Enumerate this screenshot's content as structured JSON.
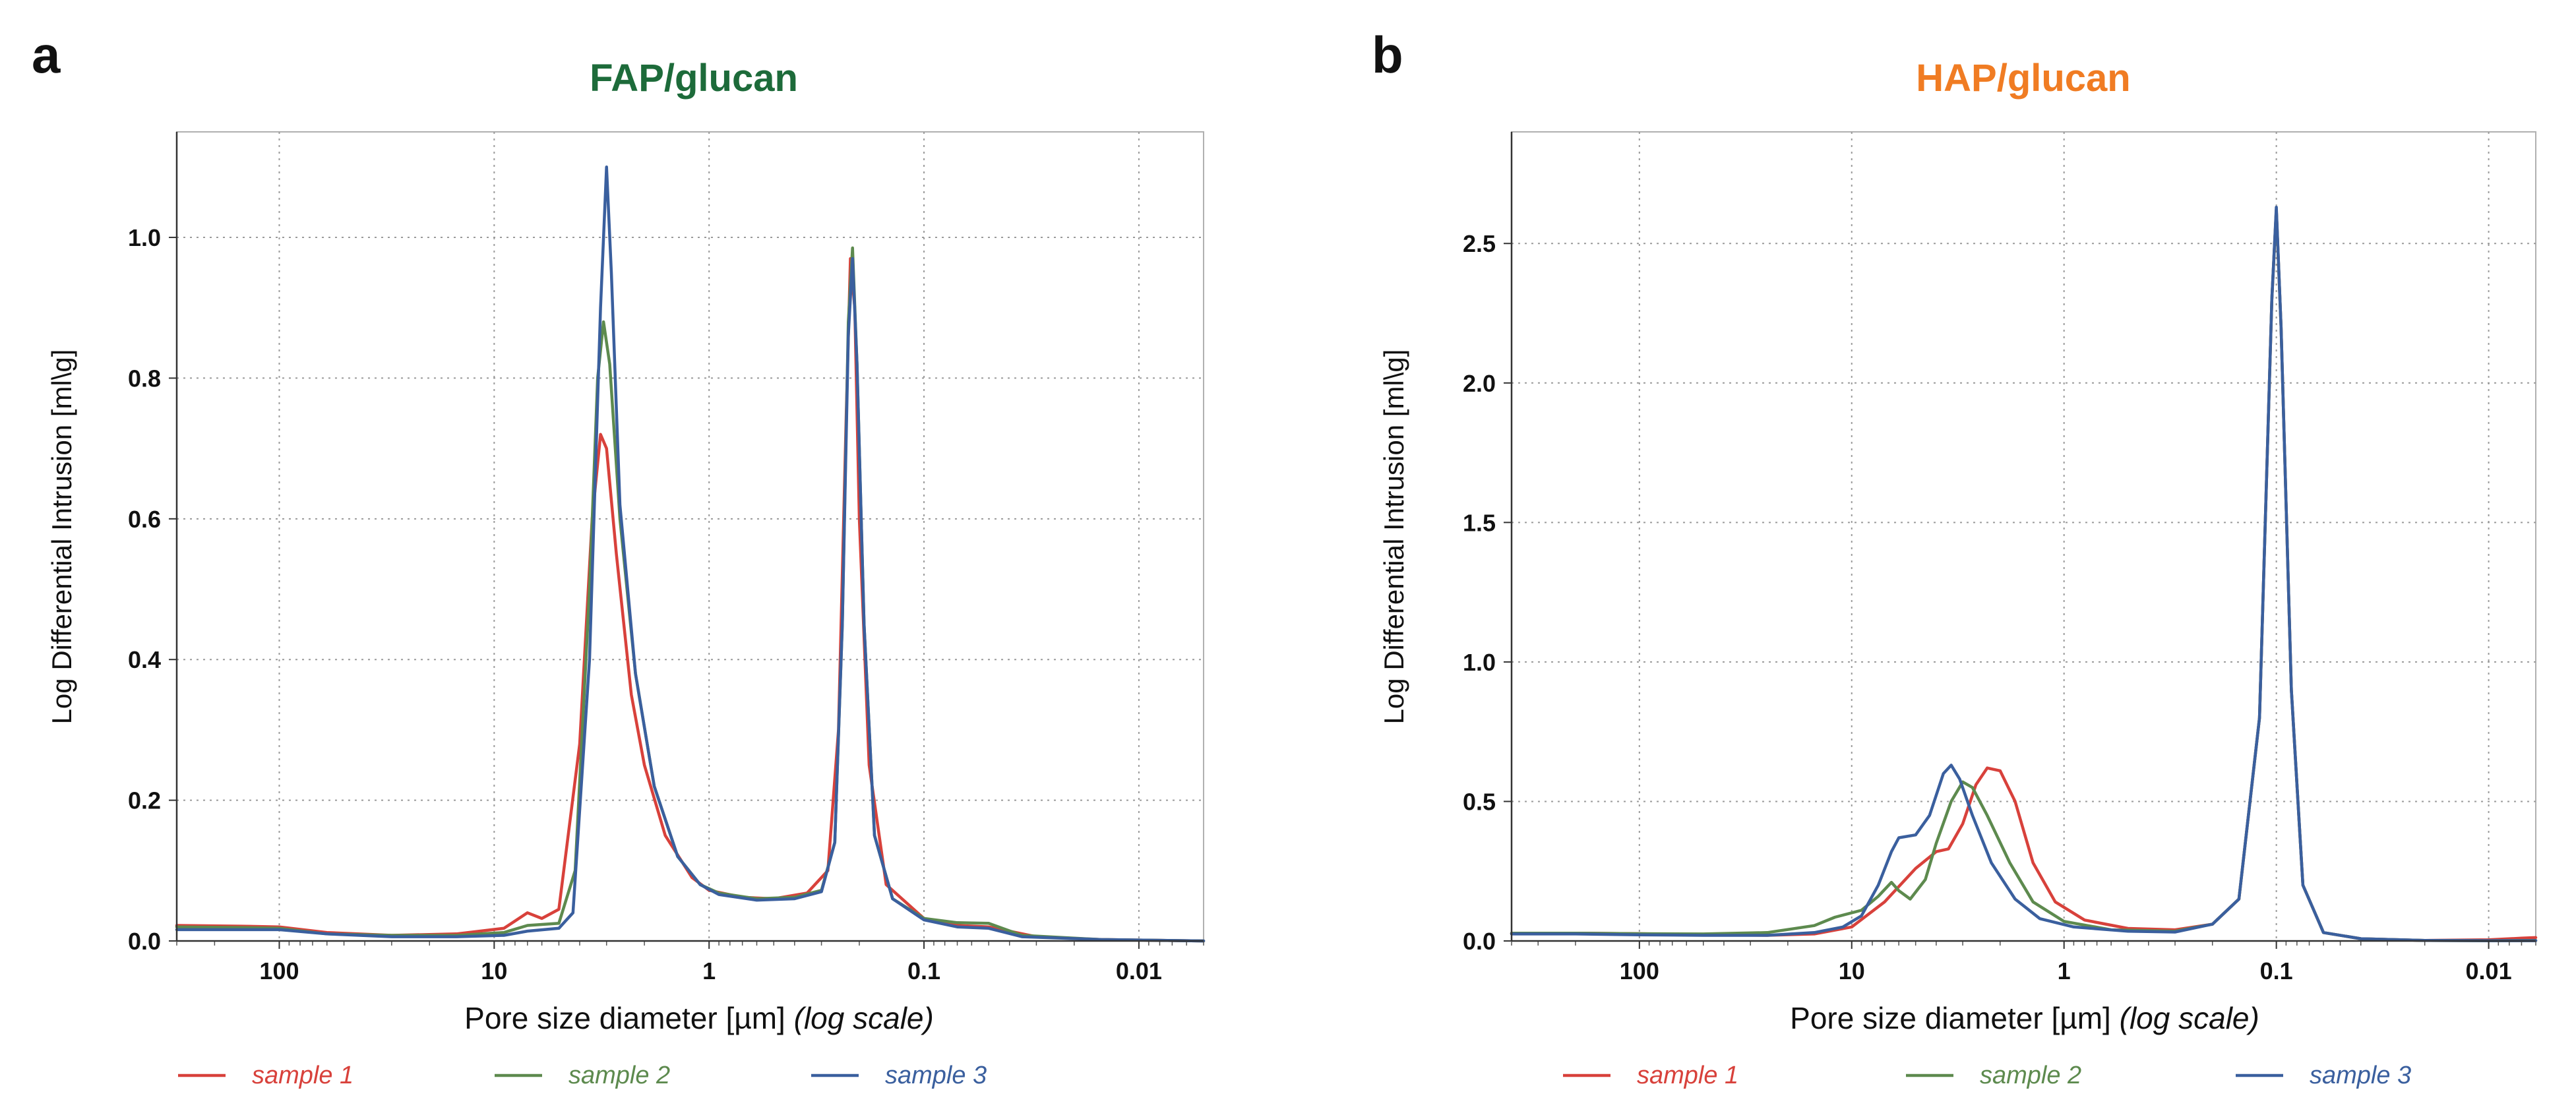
{
  "chart_data": [
    {
      "panel": "a",
      "type": "line",
      "title": "FAP/glucan",
      "title_color": "#1d6b3a",
      "xlabel": "Pore size diameter [µm]",
      "xlabel_suffix": "(log scale)",
      "x_scale": "log",
      "x_reversed": true,
      "xlim": [
        300,
        0.005
      ],
      "ylabel": "Log Differential Intrusion [ml\\g]",
      "ylim": [
        0,
        1.15
      ],
      "x_ticks": [
        {
          "value": 100,
          "label": "100"
        },
        {
          "value": 10,
          "label": "10"
        },
        {
          "value": 1,
          "label": "1"
        },
        {
          "value": 0.1,
          "label": "0.1"
        },
        {
          "value": 0.01,
          "label": "0.01"
        }
      ],
      "y_ticks": [
        {
          "value": 0,
          "label": "0.0"
        },
        {
          "value": 0.2,
          "label": "0.2"
        },
        {
          "value": 0.4,
          "label": "0.4"
        },
        {
          "value": 0.6,
          "label": "0.6"
        },
        {
          "value": 0.8,
          "label": "0.8"
        },
        {
          "value": 1.0,
          "label": "1.0"
        }
      ],
      "grid": true,
      "legend_position": "bottom",
      "series": [
        {
          "name": "sample 1",
          "color": "#d8413b",
          "points": [
            [
              300,
              0.022
            ],
            [
              150,
              0.021
            ],
            [
              100,
              0.02
            ],
            [
              60,
              0.012
            ],
            [
              30,
              0.008
            ],
            [
              15,
              0.01
            ],
            [
              9,
              0.018
            ],
            [
              7,
              0.04
            ],
            [
              6,
              0.032
            ],
            [
              5,
              0.045
            ],
            [
              4,
              0.28
            ],
            [
              3.5,
              0.6
            ],
            [
              3.2,
              0.72
            ],
            [
              3,
              0.7
            ],
            [
              2.7,
              0.55
            ],
            [
              2.3,
              0.35
            ],
            [
              2,
              0.25
            ],
            [
              1.6,
              0.15
            ],
            [
              1.2,
              0.09
            ],
            [
              1,
              0.072
            ],
            [
              0.7,
              0.062
            ],
            [
              0.5,
              0.06
            ],
            [
              0.35,
              0.068
            ],
            [
              0.28,
              0.1
            ],
            [
              0.25,
              0.3
            ],
            [
              0.23,
              0.75
            ],
            [
              0.22,
              0.97
            ],
            [
              0.21,
              0.9
            ],
            [
              0.2,
              0.6
            ],
            [
              0.18,
              0.25
            ],
            [
              0.15,
              0.08
            ],
            [
              0.1,
              0.032
            ],
            [
              0.07,
              0.022
            ],
            [
              0.05,
              0.02
            ],
            [
              0.03,
              0.006
            ],
            [
              0.015,
              0.002
            ],
            [
              0.005,
              0.0
            ]
          ]
        },
        {
          "name": "sample 2",
          "color": "#5d8a4e",
          "points": [
            [
              300,
              0.02
            ],
            [
              150,
              0.019
            ],
            [
              100,
              0.018
            ],
            [
              60,
              0.01
            ],
            [
              30,
              0.008
            ],
            [
              15,
              0.008
            ],
            [
              9,
              0.012
            ],
            [
              7,
              0.022
            ],
            [
              5,
              0.025
            ],
            [
              4.2,
              0.1
            ],
            [
              3.6,
              0.5
            ],
            [
              3.3,
              0.8
            ],
            [
              3.1,
              0.88
            ],
            [
              2.9,
              0.82
            ],
            [
              2.6,
              0.6
            ],
            [
              2.2,
              0.38
            ],
            [
              1.8,
              0.22
            ],
            [
              1.4,
              0.12
            ],
            [
              1.1,
              0.08
            ],
            [
              0.9,
              0.068
            ],
            [
              0.6,
              0.06
            ],
            [
              0.4,
              0.062
            ],
            [
              0.3,
              0.072
            ],
            [
              0.26,
              0.14
            ],
            [
              0.24,
              0.45
            ],
            [
              0.225,
              0.88
            ],
            [
              0.215,
              0.985
            ],
            [
              0.205,
              0.82
            ],
            [
              0.19,
              0.45
            ],
            [
              0.17,
              0.15
            ],
            [
              0.14,
              0.06
            ],
            [
              0.1,
              0.032
            ],
            [
              0.07,
              0.026
            ],
            [
              0.05,
              0.025
            ],
            [
              0.035,
              0.008
            ],
            [
              0.015,
              0.002
            ],
            [
              0.005,
              0.0
            ]
          ]
        },
        {
          "name": "sample 3",
          "color": "#3a5f9e",
          "points": [
            [
              300,
              0.016
            ],
            [
              150,
              0.016
            ],
            [
              100,
              0.016
            ],
            [
              60,
              0.01
            ],
            [
              30,
              0.006
            ],
            [
              15,
              0.006
            ],
            [
              9,
              0.008
            ],
            [
              7,
              0.014
            ],
            [
              5,
              0.018
            ],
            [
              4.3,
              0.04
            ],
            [
              3.6,
              0.4
            ],
            [
              3.2,
              0.9
            ],
            [
              3,
              1.1
            ],
            [
              2.85,
              0.95
            ],
            [
              2.6,
              0.62
            ],
            [
              2.2,
              0.38
            ],
            [
              1.8,
              0.22
            ],
            [
              1.4,
              0.12
            ],
            [
              1.1,
              0.08
            ],
            [
              0.9,
              0.066
            ],
            [
              0.6,
              0.058
            ],
            [
              0.4,
              0.06
            ],
            [
              0.3,
              0.07
            ],
            [
              0.26,
              0.14
            ],
            [
              0.24,
              0.45
            ],
            [
              0.225,
              0.86
            ],
            [
              0.215,
              0.97
            ],
            [
              0.205,
              0.82
            ],
            [
              0.19,
              0.45
            ],
            [
              0.17,
              0.15
            ],
            [
              0.14,
              0.06
            ],
            [
              0.1,
              0.03
            ],
            [
              0.07,
              0.02
            ],
            [
              0.05,
              0.018
            ],
            [
              0.035,
              0.006
            ],
            [
              0.015,
              0.002
            ],
            [
              0.005,
              0.0
            ]
          ]
        }
      ]
    },
    {
      "panel": "b",
      "type": "line",
      "title": "HAP/glucan",
      "title_color": "#f07c23",
      "xlabel": "Pore size diameter [µm]",
      "xlabel_suffix": "(log scale)",
      "x_scale": "log",
      "x_reversed": true,
      "xlim": [
        400,
        0.006
      ],
      "ylabel": "Log Differential Intrusion [ml\\g]",
      "ylim": [
        0,
        2.9
      ],
      "x_ticks": [
        {
          "value": 100,
          "label": "100"
        },
        {
          "value": 10,
          "label": "10"
        },
        {
          "value": 1,
          "label": "1"
        },
        {
          "value": 0.1,
          "label": "0.1"
        },
        {
          "value": 0.01,
          "label": "0.01"
        }
      ],
      "y_ticks": [
        {
          "value": 0,
          "label": "0.0"
        },
        {
          "value": 0.5,
          "label": "0.5"
        },
        {
          "value": 1.0,
          "label": "1.0"
        },
        {
          "value": 1.5,
          "label": "1.5"
        },
        {
          "value": 2.0,
          "label": "2.0"
        },
        {
          "value": 2.5,
          "label": "2.5"
        }
      ],
      "grid": true,
      "legend_position": "bottom",
      "series": [
        {
          "name": "sample 1",
          "color": "#d8413b",
          "points": [
            [
              400,
              0.028
            ],
            [
              200,
              0.028
            ],
            [
              100,
              0.026
            ],
            [
              50,
              0.022
            ],
            [
              25,
              0.02
            ],
            [
              15,
              0.025
            ],
            [
              10,
              0.05
            ],
            [
              7,
              0.14
            ],
            [
              5,
              0.26
            ],
            [
              4,
              0.32
            ],
            [
              3.5,
              0.33
            ],
            [
              3,
              0.42
            ],
            [
              2.6,
              0.56
            ],
            [
              2.3,
              0.62
            ],
            [
              2,
              0.61
            ],
            [
              1.7,
              0.5
            ],
            [
              1.4,
              0.28
            ],
            [
              1.1,
              0.14
            ],
            [
              0.8,
              0.075
            ],
            [
              0.5,
              0.045
            ],
            [
              0.3,
              0.04
            ],
            [
              0.2,
              0.06
            ],
            [
              0.15,
              0.15
            ],
            [
              0.12,
              0.8
            ],
            [
              0.105,
              2.3
            ],
            [
              0.1,
              2.62
            ],
            [
              0.095,
              2.2
            ],
            [
              0.085,
              0.9
            ],
            [
              0.075,
              0.2
            ],
            [
              0.06,
              0.03
            ],
            [
              0.04,
              0.008
            ],
            [
              0.02,
              0.002
            ],
            [
              0.01,
              0.004
            ],
            [
              0.007,
              0.01
            ],
            [
              0.006,
              0.012
            ]
          ]
        },
        {
          "name": "sample 2",
          "color": "#5d8a4e",
          "points": [
            [
              400,
              0.028
            ],
            [
              200,
              0.028
            ],
            [
              100,
              0.026
            ],
            [
              50,
              0.025
            ],
            [
              25,
              0.03
            ],
            [
              15,
              0.055
            ],
            [
              12,
              0.085
            ],
            [
              9,
              0.11
            ],
            [
              7.5,
              0.16
            ],
            [
              6.5,
              0.21
            ],
            [
              6,
              0.18
            ],
            [
              5.3,
              0.15
            ],
            [
              4.5,
              0.22
            ],
            [
              4,
              0.35
            ],
            [
              3.4,
              0.5
            ],
            [
              3,
              0.57
            ],
            [
              2.7,
              0.55
            ],
            [
              2.3,
              0.45
            ],
            [
              1.8,
              0.28
            ],
            [
              1.4,
              0.14
            ],
            [
              1,
              0.07
            ],
            [
              0.6,
              0.04
            ],
            [
              0.3,
              0.035
            ],
            [
              0.2,
              0.06
            ],
            [
              0.15,
              0.15
            ],
            [
              0.12,
              0.8
            ],
            [
              0.105,
              2.3
            ],
            [
              0.1,
              2.62
            ],
            [
              0.095,
              2.2
            ],
            [
              0.085,
              0.9
            ],
            [
              0.075,
              0.2
            ],
            [
              0.06,
              0.03
            ],
            [
              0.04,
              0.008
            ],
            [
              0.02,
              0.002
            ],
            [
              0.01,
              0.001
            ],
            [
              0.006,
              0.002
            ]
          ]
        },
        {
          "name": "sample 3",
          "color": "#3a5f9e",
          "points": [
            [
              400,
              0.025
            ],
            [
              200,
              0.025
            ],
            [
              100,
              0.022
            ],
            [
              50,
              0.02
            ],
            [
              25,
              0.02
            ],
            [
              15,
              0.03
            ],
            [
              11,
              0.05
            ],
            [
              9,
              0.09
            ],
            [
              7.5,
              0.2
            ],
            [
              6.5,
              0.32
            ],
            [
              6,
              0.37
            ],
            [
              5,
              0.38
            ],
            [
              4.3,
              0.45
            ],
            [
              3.7,
              0.6
            ],
            [
              3.4,
              0.63
            ],
            [
              3.1,
              0.58
            ],
            [
              2.7,
              0.45
            ],
            [
              2.2,
              0.28
            ],
            [
              1.7,
              0.15
            ],
            [
              1.3,
              0.08
            ],
            [
              0.9,
              0.05
            ],
            [
              0.5,
              0.035
            ],
            [
              0.3,
              0.032
            ],
            [
              0.2,
              0.06
            ],
            [
              0.15,
              0.15
            ],
            [
              0.12,
              0.8
            ],
            [
              0.105,
              2.3
            ],
            [
              0.1,
              2.63
            ],
            [
              0.095,
              2.2
            ],
            [
              0.085,
              0.9
            ],
            [
              0.075,
              0.2
            ],
            [
              0.06,
              0.03
            ],
            [
              0.04,
              0.008
            ],
            [
              0.02,
              0.002
            ],
            [
              0.01,
              0.001
            ],
            [
              0.006,
              0.001
            ]
          ]
        }
      ]
    }
  ]
}
